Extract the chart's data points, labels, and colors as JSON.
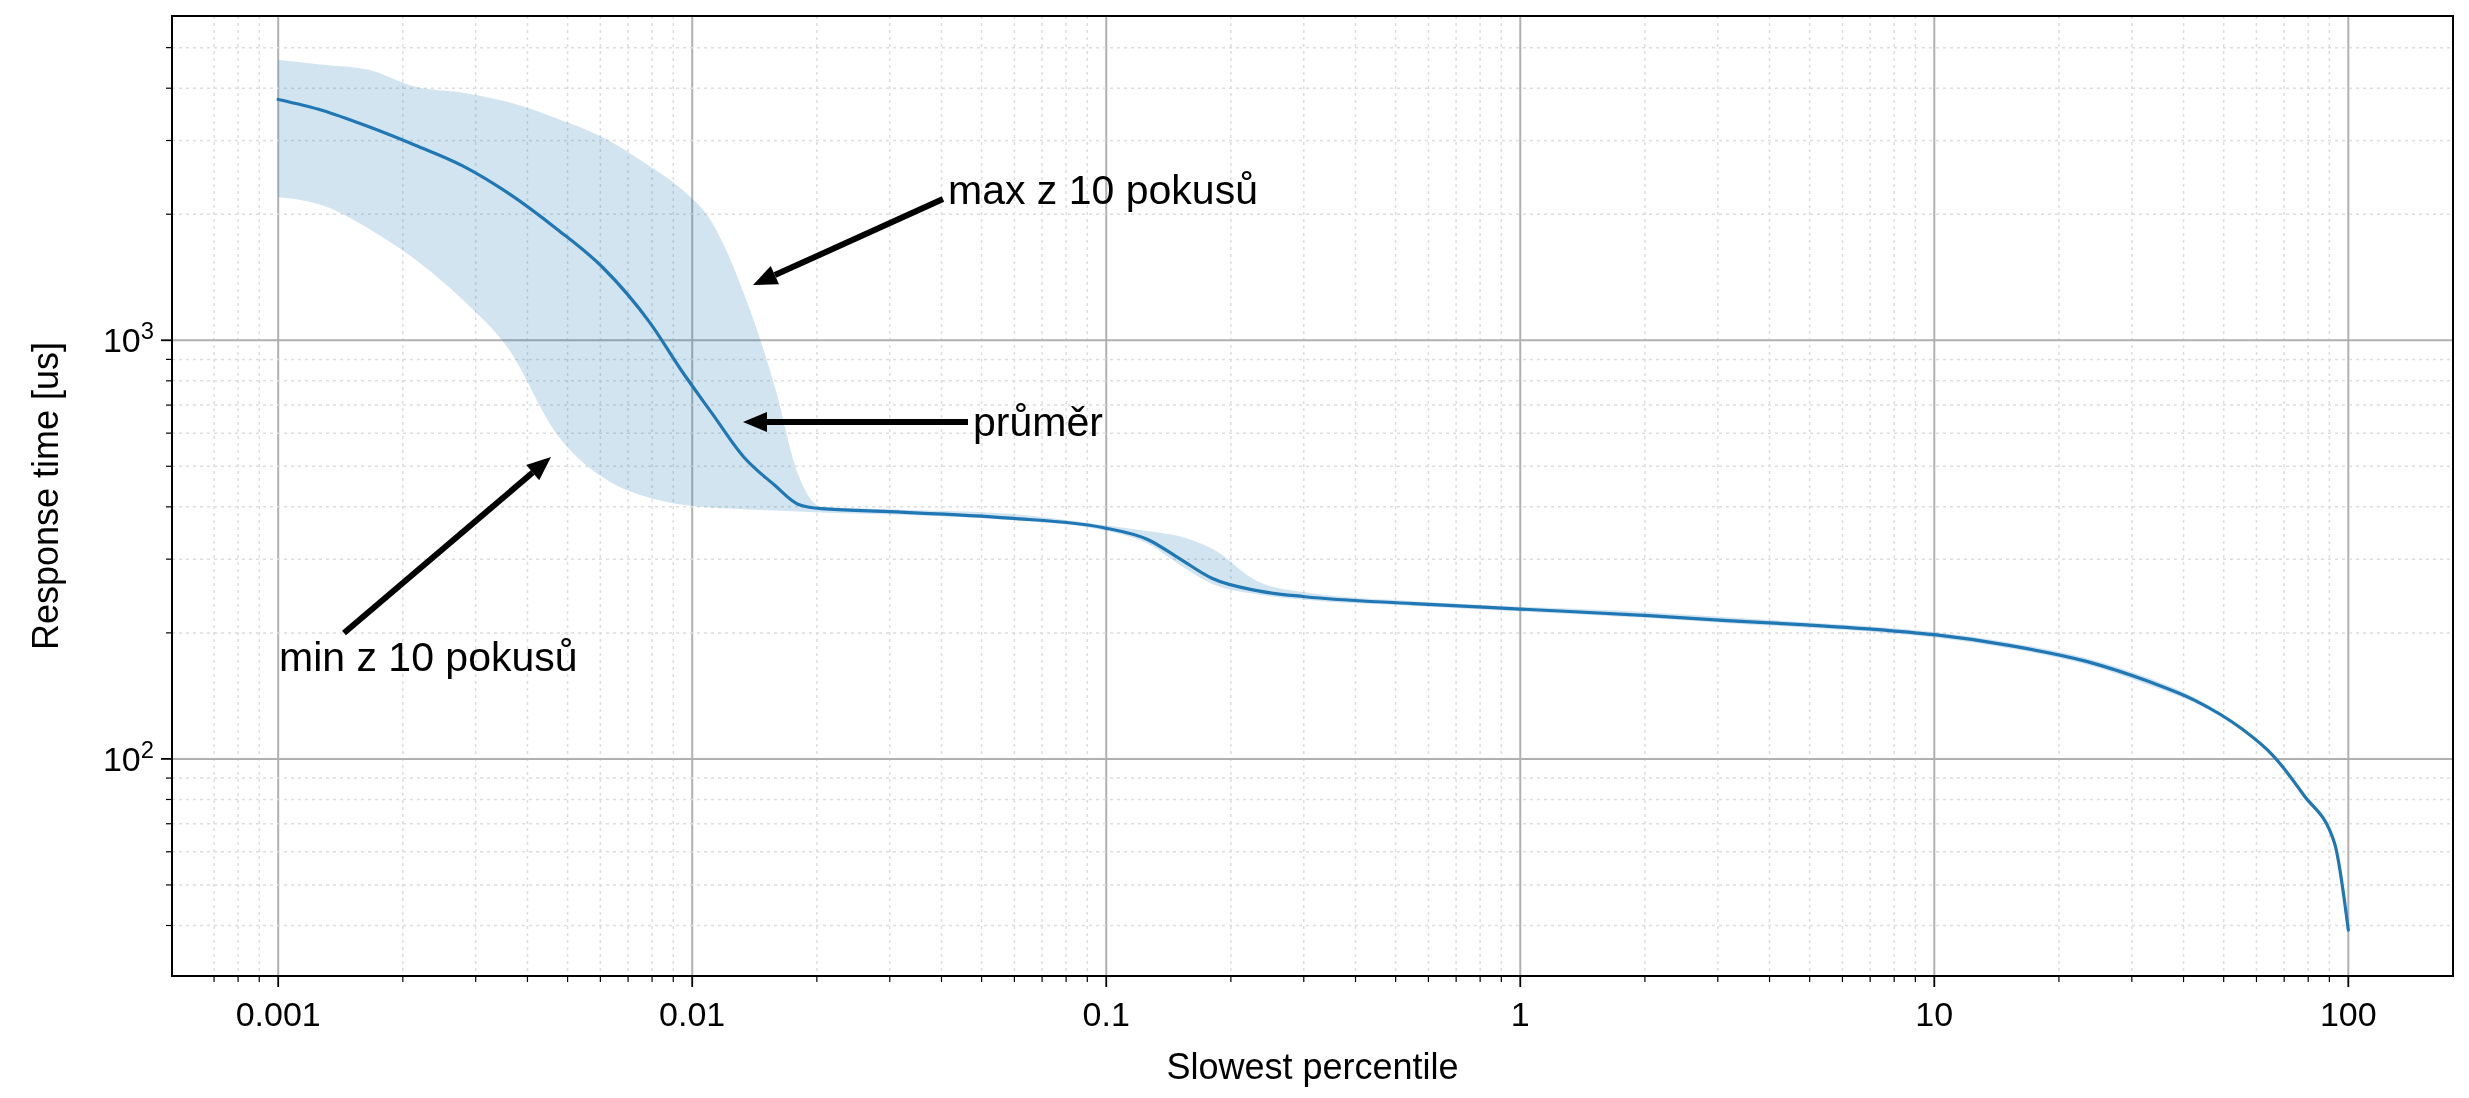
{
  "chart_data": {
    "type": "line",
    "xlabel": "Slowest percentile",
    "ylabel": "Response time [us]",
    "log": "xy",
    "grid": true,
    "marker": "none",
    "line_style": "solid",
    "xlim": [
      0.000554,
      179
    ],
    "ylim": [
      30.3,
      5950
    ],
    "xticks": [
      0.001,
      0.01,
      0.1,
      1,
      10,
      100,
      {
        "value": 0.0007,
        "label": null
      },
      {
        "value": 0.0008,
        "label": null
      },
      {
        "value": 0.0009,
        "label": null
      },
      {
        "value": 0.002,
        "label": null
      },
      {
        "value": 0.003,
        "label": null
      },
      {
        "value": 0.004,
        "label": null
      },
      {
        "value": 0.005,
        "label": null
      },
      {
        "value": 0.006,
        "label": null
      },
      {
        "value": 0.007,
        "label": null
      },
      {
        "value": 0.008,
        "label": null
      },
      {
        "value": 0.009,
        "label": null
      },
      {
        "value": 0.02,
        "label": null
      },
      {
        "value": 0.03,
        "label": null
      },
      {
        "value": 0.04,
        "label": null
      },
      {
        "value": 0.05,
        "label": null
      },
      {
        "value": 0.06,
        "label": null
      },
      {
        "value": 0.07,
        "label": null
      },
      {
        "value": 0.08,
        "label": null
      },
      {
        "value": 0.09,
        "label": null
      },
      {
        "value": 0.2,
        "label": null
      },
      {
        "value": 0.3,
        "label": null
      },
      {
        "value": 0.4,
        "label": null
      },
      {
        "value": 0.5,
        "label": null
      },
      {
        "value": 0.6,
        "label": null
      },
      {
        "value": 0.7,
        "label": null
      },
      {
        "value": 0.8,
        "label": null
      },
      {
        "value": 0.9,
        "label": null
      },
      {
        "value": 2,
        "label": null
      },
      {
        "value": 3,
        "label": null
      },
      {
        "value": 4,
        "label": null
      },
      {
        "value": 5,
        "label": null
      },
      {
        "value": 6,
        "label": null
      },
      {
        "value": 7,
        "label": null
      },
      {
        "value": 8,
        "label": null
      },
      {
        "value": 9,
        "label": null
      },
      {
        "value": 20,
        "label": null
      },
      {
        "value": 30,
        "label": null
      },
      {
        "value": 40,
        "label": null
      },
      {
        "value": 50,
        "label": null
      },
      {
        "value": 60,
        "label": null
      },
      {
        "value": 70,
        "label": null
      },
      {
        "value": 80,
        "label": null
      },
      {
        "value": 90,
        "label": null
      }
    ],
    "yticks": [
      {
        "value": 100,
        "label": "10$^{2}$"
      },
      {
        "value": 1000,
        "label": "10$^{3}$"
      },
      {
        "value": 40,
        "label": null
      },
      {
        "value": 50,
        "label": null
      },
      {
        "value": 60,
        "label": null
      },
      {
        "value": 70,
        "label": null
      },
      {
        "value": 80,
        "label": null
      },
      {
        "value": 90,
        "label": null
      },
      {
        "value": 200,
        "label": null
      },
      {
        "value": 300,
        "label": null
      },
      {
        "value": 400,
        "label": null
      },
      {
        "value": 500,
        "label": null
      },
      {
        "value": 600,
        "label": null
      },
      {
        "value": 700,
        "label": null
      },
      {
        "value": 800,
        "label": null
      },
      {
        "value": 900,
        "label": null
      },
      {
        "value": 2000,
        "label": null
      },
      {
        "value": 3000,
        "label": null
      },
      {
        "value": 4000,
        "label": null
      },
      {
        "value": 5000,
        "label": null
      }
    ],
    "x": [
      0.001,
      0.00128,
      0.00165,
      0.00215,
      0.00279,
      0.00361,
      0.00469,
      0.00609,
      0.00791,
      0.0094,
      0.0112,
      0.0133,
      0.0158,
      0.018,
      0.0205,
      0.0291,
      0.0584,
      0.098,
      0.127,
      0.151,
      0.18,
      0.233,
      0.302,
      0.553,
      1,
      2.04,
      3.16,
      4.9,
      7.6,
      10,
      15,
      23.3,
      33,
      42.6,
      55.3,
      65.7,
      78,
      92.6,
      100
    ],
    "series": [
      {
        "color": "#1f77b4",
        "values": [
          3760,
          3540,
          3240,
          2920,
          2610,
          2240,
          1850,
          1490,
          1100,
          849,
          666,
          527,
          451,
          406,
          396,
          390,
          376,
          357,
          333,
          300,
          270,
          252,
          244,
          235,
          228,
          220,
          214,
          209,
          203,
          198,
          187,
          171,
          153,
          138,
          118,
          102,
          82,
          63,
          39
        ],
        "upper": [
          4670,
          4550,
          4430,
          4030,
          3900,
          3700,
          3390,
          3050,
          2600,
          2300,
          1900,
          1300,
          780,
          480,
          400,
          395,
          385,
          362,
          350,
          340,
          318,
          265,
          250,
          238,
          231,
          224,
          218,
          212,
          206,
          201,
          190,
          174,
          156,
          140,
          119,
          103,
          83,
          64,
          39
        ],
        "lower": [
          2200,
          2100,
          1850,
          1555,
          1250,
          950,
          600,
          470,
          420,
          405,
          398,
          395,
          392,
          390,
          388,
          384,
          372,
          352,
          325,
          290,
          262,
          247,
          240,
          232,
          225,
          217,
          211,
          206,
          200,
          195,
          184,
          168,
          150,
          136,
          117,
          101,
          81,
          62,
          39
        ]
      }
    ],
    "annotations": [
      "max z 10 pokusů",
      "průměr",
      "min z 10 pokusů"
    ]
  }
}
